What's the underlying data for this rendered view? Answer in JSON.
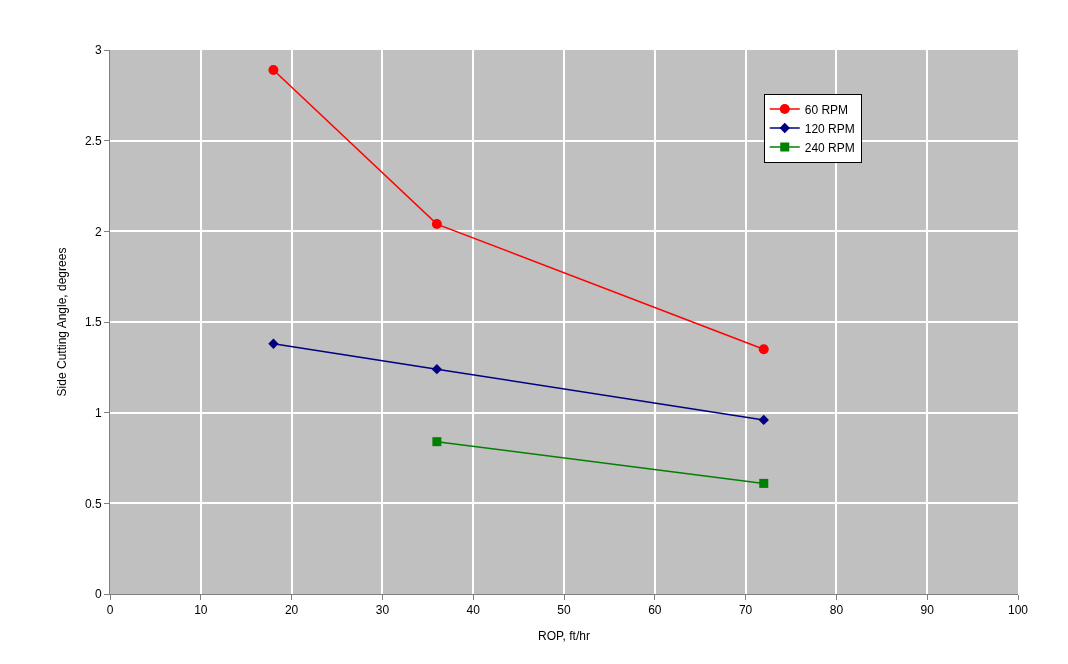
{
  "chart_data": {
    "type": "line",
    "xlabel": "ROP, ft/hr",
    "ylabel": "Side Cutting Angle, degrees",
    "xlim": [
      0,
      100
    ],
    "xticks": [
      0,
      10,
      20,
      30,
      40,
      50,
      60,
      70,
      80,
      90,
      100
    ],
    "ylim": [
      0,
      3
    ],
    "yticks": [
      0,
      0.5,
      1,
      1.5,
      2,
      2.5,
      3
    ],
    "grid": true,
    "legend": "top right",
    "line_style": "solid",
    "series": [
      {
        "name": "60 RPM",
        "color": "#ff0000",
        "marker": "circle",
        "x": [
          18,
          36,
          72
        ],
        "values": [
          2.89,
          2.04,
          1.35
        ]
      },
      {
        "name": "120 RPM",
        "color": "#000080",
        "marker": "diamond",
        "x": [
          18,
          36,
          72
        ],
        "values": [
          1.38,
          1.24,
          0.96
        ]
      },
      {
        "name": "240 RPM",
        "color": "#008000",
        "marker": "square",
        "x": [
          36,
          72
        ],
        "values": [
          0.84,
          0.61
        ]
      }
    ]
  }
}
